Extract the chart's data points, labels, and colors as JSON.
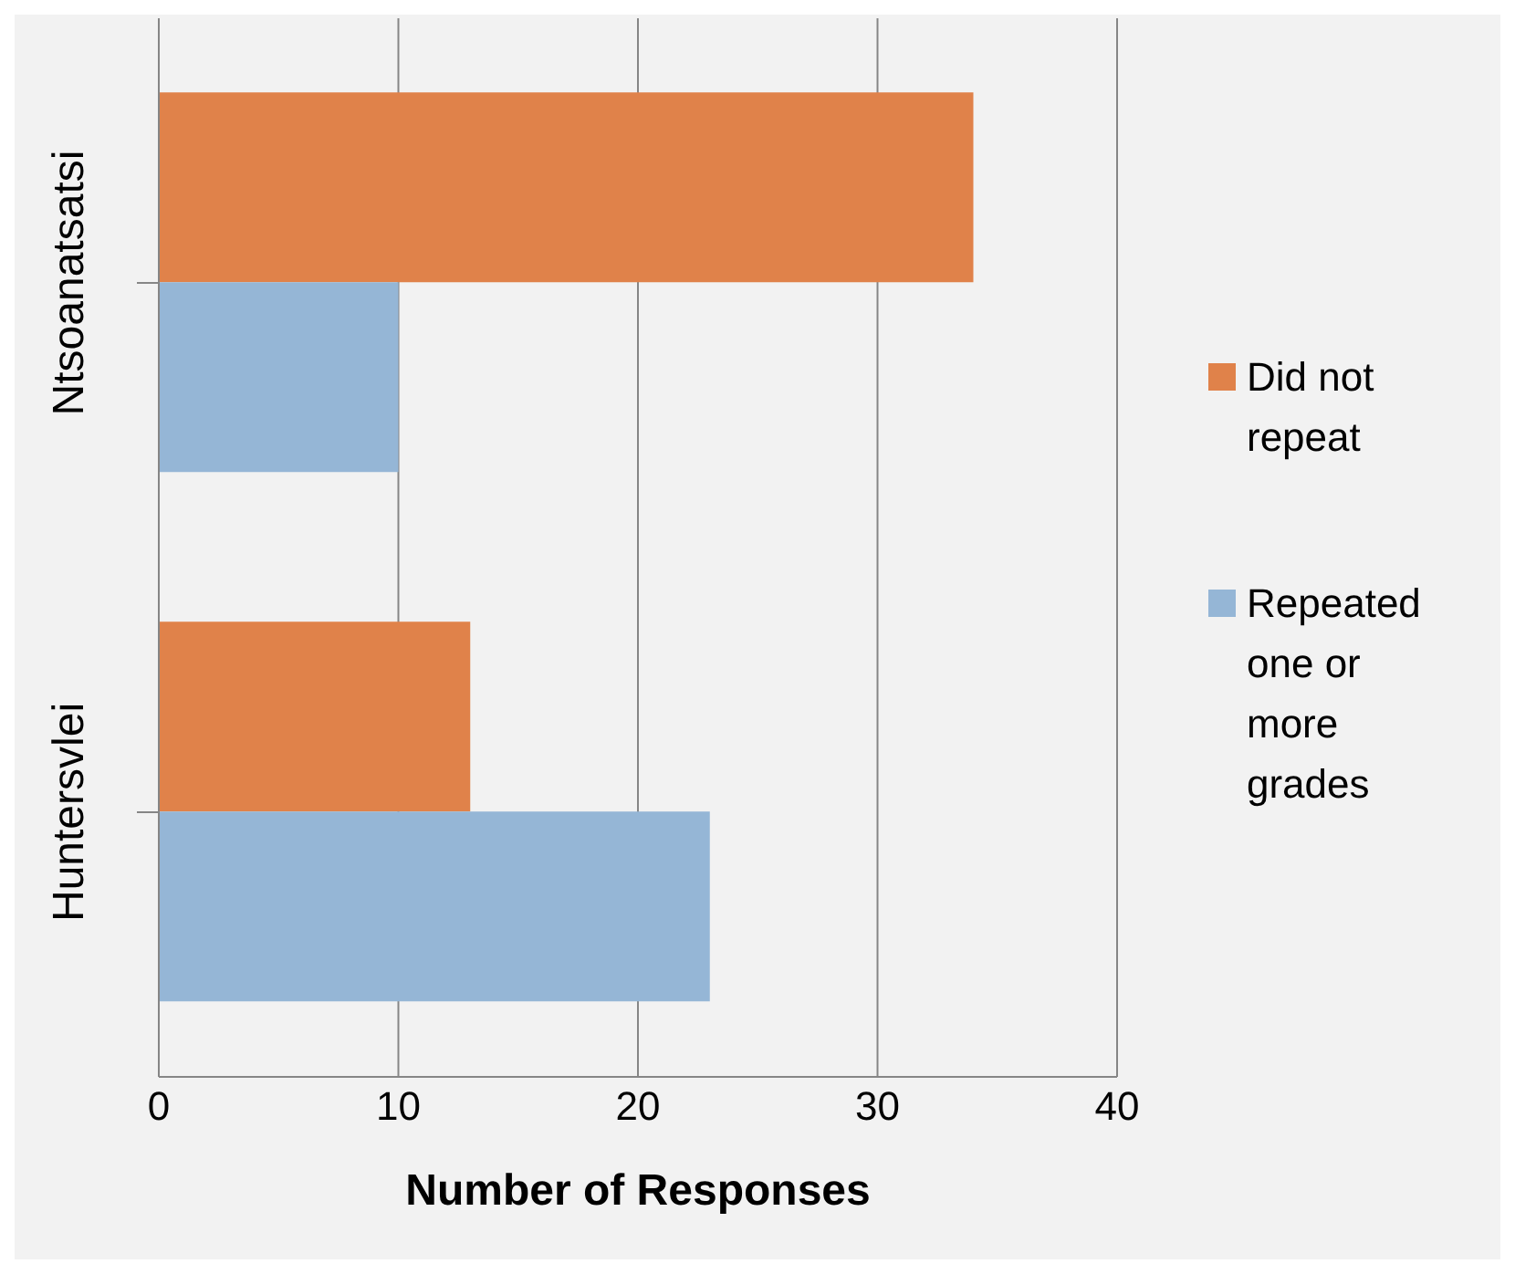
{
  "chart_data": {
    "type": "bar",
    "orientation": "horizontal",
    "xlabel": "Number of Responses",
    "categories": [
      "Ntsoanatsatsi",
      "Huntersvlei"
    ],
    "series": [
      {
        "name": "Did not repeat",
        "color": "#e0824a",
        "values": [
          34,
          13
        ]
      },
      {
        "name": "Repeated one or more grades",
        "color": "#95b6d6",
        "values": [
          10,
          23
        ]
      }
    ],
    "xlim": [
      0,
      40
    ],
    "xticks": [
      0,
      10,
      20,
      30,
      40
    ],
    "grid": "x",
    "legend": "right"
  }
}
